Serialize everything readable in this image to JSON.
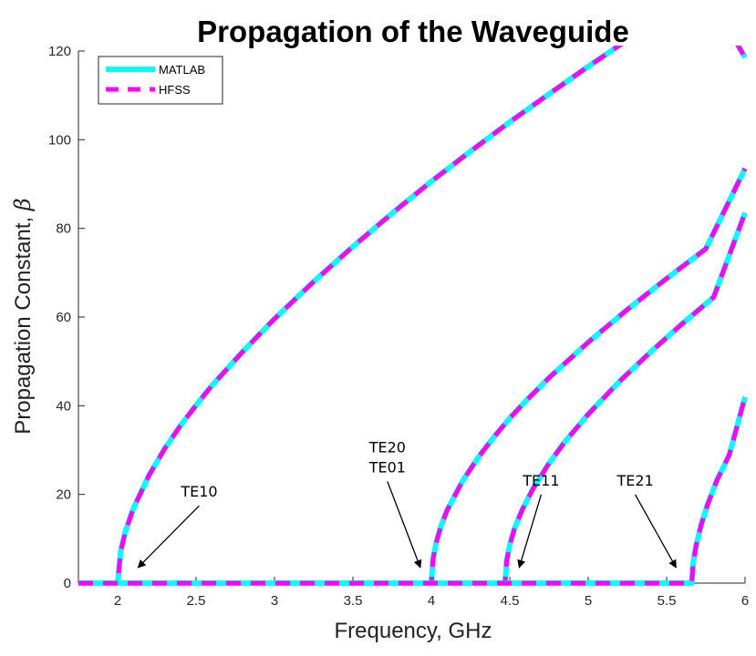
{
  "chart_data": {
    "type": "line",
    "title": "Propagation of the Waveguide",
    "xlabel": "Frequency, GHz",
    "ylabel_text": "Propagation Constant, ",
    "ylabel_symbol": "β",
    "xlim": [
      1.75,
      6
    ],
    "ylim": [
      0,
      120
    ],
    "xticks": [
      2,
      2.5,
      3,
      3.5,
      4,
      4.5,
      5,
      5.5,
      6
    ],
    "xtick_labels": [
      "2",
      "2.5",
      "3",
      "3.5",
      "4",
      "4.5",
      "5",
      "5.5",
      "6"
    ],
    "yticks": [
      0,
      20,
      40,
      60,
      80,
      100,
      120
    ],
    "ytick_labels": [
      "0",
      "20",
      "40",
      "60",
      "80",
      "100",
      "120"
    ],
    "grid": false,
    "legend_position": "top-left",
    "legend": [
      {
        "label": "MATLAB",
        "color": "#00ffff",
        "style": "solid"
      },
      {
        "label": "HFSS",
        "color": "#ff00ff",
        "style": "dashed"
      }
    ],
    "modes": [
      {
        "name": "TE10",
        "cutoff": 2.0,
        "values": [
          [
            1.75,
            0
          ],
          [
            2.0,
            0
          ],
          [
            2.02,
            7.2
          ],
          [
            2.05,
            11.7
          ],
          [
            2.1,
            16.8
          ],
          [
            2.2,
            24.3
          ],
          [
            2.3,
            30.3
          ],
          [
            2.4,
            35.5
          ],
          [
            2.5,
            40.1
          ],
          [
            2.6,
            44.5
          ],
          [
            2.8,
            52.3
          ],
          [
            3.0,
            59.6
          ],
          [
            3.25,
            68.0
          ],
          [
            3.5,
            75.9
          ],
          [
            3.75,
            83.4
          ],
          [
            4.0,
            90.6
          ],
          [
            4.25,
            97.4
          ],
          [
            4.5,
            104.0
          ],
          [
            4.75,
            110.3
          ],
          [
            5.0,
            116.5
          ],
          [
            5.25,
            122.5
          ],
          [
            5.5,
            128.4
          ],
          [
            5.75,
            134.2
          ],
          [
            6.0,
            118.5
          ]
        ]
      },
      {
        "name": "TE20 TE01",
        "cutoff": 4.0,
        "values": [
          [
            1.75,
            0
          ],
          [
            4.0,
            0
          ],
          [
            4.01,
            5.2
          ],
          [
            4.03,
            9.0
          ],
          [
            4.06,
            12.7
          ],
          [
            4.1,
            16.4
          ],
          [
            4.2,
            23.1
          ],
          [
            4.3,
            28.4
          ],
          [
            4.4,
            33.0
          ],
          [
            4.5,
            37.2
          ],
          [
            4.6,
            41.0
          ],
          [
            4.75,
            46.3
          ],
          [
            5.0,
            54.3
          ],
          [
            5.25,
            61.7
          ],
          [
            5.5,
            68.7
          ],
          [
            5.75,
            75.4
          ],
          [
            6.0,
            93.5
          ]
        ]
      },
      {
        "name": "TE11",
        "cutoff": 4.47,
        "values": [
          [
            1.75,
            0
          ],
          [
            4.47,
            0
          ],
          [
            4.48,
            5.0
          ],
          [
            4.5,
            8.6
          ],
          [
            4.53,
            12.3
          ],
          [
            4.58,
            16.6
          ],
          [
            4.65,
            21.4
          ],
          [
            4.75,
            27.0
          ],
          [
            4.85,
            31.8
          ],
          [
            5.0,
            38.1
          ],
          [
            5.2,
            45.5
          ],
          [
            5.4,
            52.2
          ],
          [
            5.6,
            58.5
          ],
          [
            5.8,
            64.5
          ],
          [
            6.0,
            83.5
          ]
        ]
      },
      {
        "name": "TE21",
        "cutoff": 5.66,
        "values": [
          [
            1.75,
            0
          ],
          [
            5.66,
            0
          ],
          [
            5.67,
            4.8
          ],
          [
            5.69,
            8.8
          ],
          [
            5.72,
            13.1
          ],
          [
            5.76,
            17.6
          ],
          [
            5.82,
            23.1
          ],
          [
            5.9,
            29.0
          ],
          [
            6.0,
            42.0
          ]
        ]
      }
    ],
    "annotations": [
      {
        "lines": [
          "TE10"
        ],
        "arrow_to": [
          2.13,
          3.5
        ],
        "text_at": [
          2.52,
          19.5
        ]
      },
      {
        "lines": [
          "TE20",
          "TE01"
        ],
        "arrow_to": [
          3.93,
          3.5
        ],
        "text_at": [
          3.72,
          25
        ]
      },
      {
        "lines": [
          "TE11"
        ],
        "arrow_to": [
          4.56,
          3.5
        ],
        "text_at": [
          4.7,
          22
        ]
      },
      {
        "lines": [
          "TE21"
        ],
        "arrow_to": [
          5.56,
          3.5
        ],
        "text_at": [
          5.3,
          22
        ]
      }
    ]
  }
}
